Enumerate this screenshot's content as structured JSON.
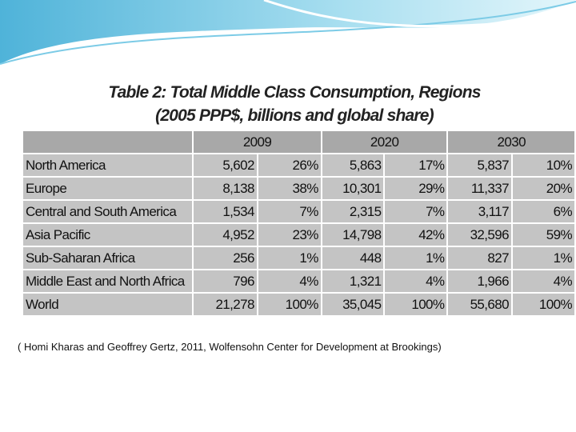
{
  "title": [
    "Table 2: Total Middle Class Consumption, Regions",
    "(2005 PPP$, billions and global share)"
  ],
  "table": {
    "header": [
      "2009",
      "2020",
      "2030"
    ],
    "rows": [
      [
        "North America",
        "5,602",
        "26%",
        "5,863",
        "17%",
        "5,837",
        "10%"
      ],
      [
        "Europe",
        "8,138",
        "38%",
        "10,301",
        "29%",
        "11,337",
        "20%"
      ],
      [
        "Central and South America",
        "1,534",
        "7%",
        "2,315",
        "7%",
        "3,117",
        "6%"
      ],
      [
        "Asia Pacific",
        "4,952",
        "23%",
        "14,798",
        "42%",
        "32,596",
        "59%"
      ],
      [
        "Sub-Saharan Africa",
        "256",
        "1%",
        "448",
        "1%",
        "827",
        "1%"
      ],
      [
        "Middle East and North Africa",
        "796",
        "4%",
        "1,321",
        "4%",
        "1,966",
        "4%"
      ],
      [
        "World",
        "21,278",
        "100%",
        "35,045",
        "100%",
        "55,680",
        "100%"
      ]
    ]
  },
  "caption": "( Homi Kharas and Geoffrey Gertz, 2011, Wolfensohn Center for Development at Brookings)"
}
